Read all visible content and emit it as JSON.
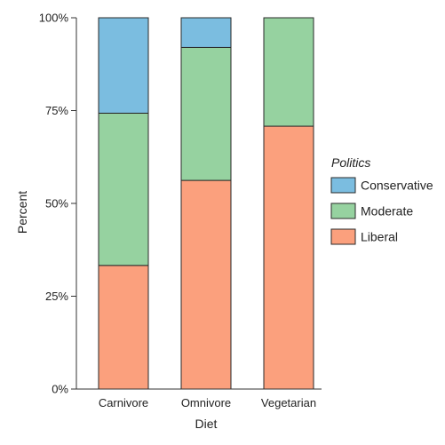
{
  "chart_data": {
    "type": "bar",
    "stacked": true,
    "xlabel": "Diet",
    "ylabel": "Percent",
    "ylim": [
      0,
      100
    ],
    "yticks": [
      "0%",
      "25%",
      "50%",
      "75%",
      "100%"
    ],
    "categories": [
      "Carnivore",
      "Omnivore",
      "Vegetarian"
    ],
    "legend_title": "Politics",
    "legend_position": "right",
    "series": [
      {
        "name": "Liberal",
        "color": "#fba07d",
        "values": [
          33.3,
          56.2,
          70.8
        ]
      },
      {
        "name": "Moderate",
        "color": "#96d2a0",
        "values": [
          41.0,
          35.8,
          29.2
        ]
      },
      {
        "name": "Conservative",
        "color": "#7bbde0",
        "values": [
          25.7,
          8.0,
          0
        ]
      }
    ],
    "legend_order": [
      "Conservative",
      "Moderate",
      "Liberal"
    ]
  }
}
